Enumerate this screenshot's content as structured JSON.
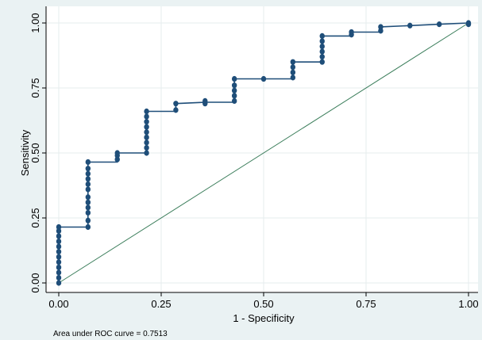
{
  "chart_data": {
    "type": "line",
    "xlabel": "1 - Specificity",
    "ylabel": "Sensitivity",
    "xlim": [
      0,
      1
    ],
    "ylim": [
      0,
      1
    ],
    "x_ticks": [
      "0.00",
      "0.25",
      "0.50",
      "0.75",
      "1.00"
    ],
    "y_ticks": [
      "0.00",
      "0.25",
      "0.50",
      "0.75",
      "1.00"
    ],
    "note": "Area under ROC curve = 0.7513",
    "grid": true,
    "colors": {
      "curve": "#1f4e79",
      "marker": "#1f4e79",
      "reference": "#3a7d5a",
      "plot_bg": "#ffffff",
      "outer_bg": "#eaf2f3"
    },
    "series": [
      {
        "type": "step-line",
        "x": [
          0,
          0,
          0.0714,
          0.0714,
          0.1429,
          0.1429,
          0.2143,
          0.2143,
          0.2857,
          0.2857,
          0.3571,
          0.4286,
          0.4286,
          0.5,
          0.5714,
          0.5714,
          0.6429,
          0.6429,
          0.7143,
          0.7143,
          0.7857,
          0.7857,
          0.8571,
          0.9286,
          1.0
        ],
        "y": [
          0,
          0.215,
          0.215,
          0.465,
          0.465,
          0.5,
          0.5,
          0.66,
          0.66,
          0.69,
          0.695,
          0.695,
          0.785,
          0.785,
          0.785,
          0.85,
          0.85,
          0.95,
          0.95,
          0.965,
          0.965,
          0.985,
          0.99,
          0.995,
          1.0
        ]
      },
      {
        "type": "markers",
        "points": [
          [
            0,
            0
          ],
          [
            0,
            0.02
          ],
          [
            0,
            0.04
          ],
          [
            0,
            0.06
          ],
          [
            0,
            0.08
          ],
          [
            0,
            0.1
          ],
          [
            0,
            0.12
          ],
          [
            0,
            0.14
          ],
          [
            0,
            0.16
          ],
          [
            0,
            0.18
          ],
          [
            0,
            0.2
          ],
          [
            0,
            0.215
          ],
          [
            0.0714,
            0.215
          ],
          [
            0.0714,
            0.24
          ],
          [
            0.0714,
            0.27
          ],
          [
            0.0714,
            0.29
          ],
          [
            0.0714,
            0.31
          ],
          [
            0.0714,
            0.33
          ],
          [
            0.0714,
            0.36
          ],
          [
            0.0714,
            0.38
          ],
          [
            0.0714,
            0.4
          ],
          [
            0.0714,
            0.42
          ],
          [
            0.0714,
            0.44
          ],
          [
            0.0714,
            0.465
          ],
          [
            0.1429,
            0.475
          ],
          [
            0.1429,
            0.49
          ],
          [
            0.1429,
            0.5
          ],
          [
            0.2143,
            0.5
          ],
          [
            0.2143,
            0.52
          ],
          [
            0.2143,
            0.54
          ],
          [
            0.2143,
            0.56
          ],
          [
            0.2143,
            0.58
          ],
          [
            0.2143,
            0.6
          ],
          [
            0.2143,
            0.62
          ],
          [
            0.2143,
            0.64
          ],
          [
            0.2143,
            0.66
          ],
          [
            0.2857,
            0.665
          ],
          [
            0.2857,
            0.69
          ],
          [
            0.3571,
            0.69
          ],
          [
            0.3571,
            0.7
          ],
          [
            0.4286,
            0.7
          ],
          [
            0.4286,
            0.72
          ],
          [
            0.4286,
            0.74
          ],
          [
            0.4286,
            0.76
          ],
          [
            0.4286,
            0.785
          ],
          [
            0.5,
            0.785
          ],
          [
            0.5714,
            0.79
          ],
          [
            0.5714,
            0.81
          ],
          [
            0.5714,
            0.83
          ],
          [
            0.5714,
            0.85
          ],
          [
            0.6429,
            0.85
          ],
          [
            0.6429,
            0.87
          ],
          [
            0.6429,
            0.89
          ],
          [
            0.6429,
            0.91
          ],
          [
            0.6429,
            0.93
          ],
          [
            0.6429,
            0.95
          ],
          [
            0.7143,
            0.955
          ],
          [
            0.7143,
            0.965
          ],
          [
            0.7857,
            0.97
          ],
          [
            0.7857,
            0.985
          ],
          [
            0.8571,
            0.99
          ],
          [
            0.9286,
            0.995
          ],
          [
            1.0,
            0.995
          ],
          [
            1.0,
            1.0
          ]
        ]
      },
      {
        "type": "reference-line",
        "x": [
          0,
          1
        ],
        "y": [
          0,
          1
        ]
      }
    ]
  }
}
